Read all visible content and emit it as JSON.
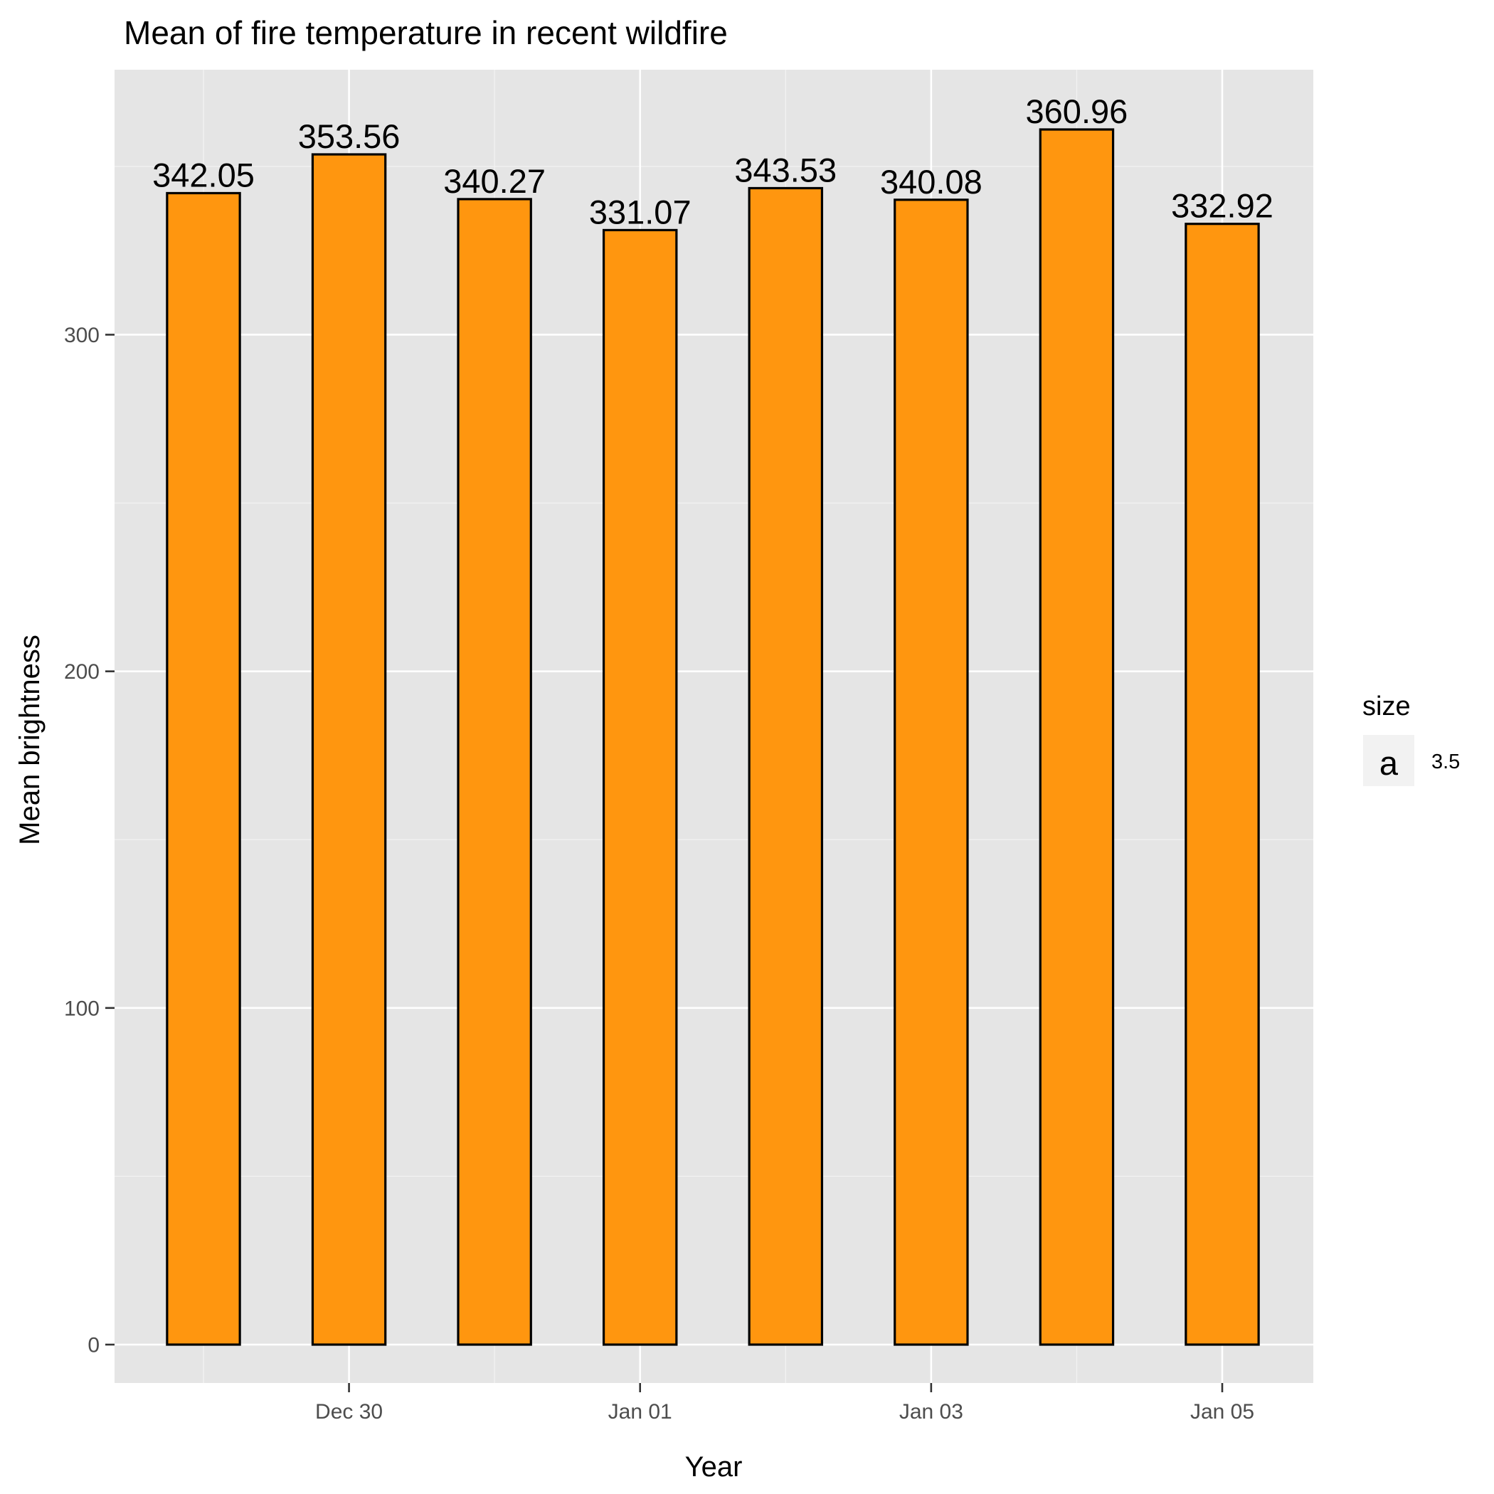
{
  "chart_data": {
    "type": "bar",
    "title": "Mean of fire temperature in recent wildfire",
    "xlabel": "Year",
    "ylabel": "Mean brightness",
    "x_axis_type": "date",
    "x_range": [
      "2022-12-28",
      "2023-01-05"
    ],
    "categories": [
      "2022-12-29",
      "2022-12-30",
      "2022-12-31",
      "2023-01-01",
      "2023-01-02",
      "2023-01-03",
      "2023-01-04",
      "2023-01-05"
    ],
    "values": [
      342.05,
      353.56,
      340.27,
      331.07,
      343.53,
      340.08,
      360.96,
      332.92
    ],
    "value_labels": [
      "342.05",
      "353.56",
      "340.27",
      "331.07",
      "343.53",
      "340.08",
      "360.96",
      "332.92"
    ],
    "ylim": [
      0,
      360.96
    ],
    "yticks": [
      0,
      100,
      200,
      300
    ],
    "ytick_labels": [
      "0",
      "100",
      "200",
      "300"
    ],
    "xticks": [
      "2022-12-30",
      "2023-01-01",
      "2023-01-03",
      "2023-01-05"
    ],
    "xtick_labels": [
      "Dec 30",
      "Jan 01",
      "Jan 03",
      "Jan 05"
    ],
    "grid": true,
    "bar_fill": "#FF960F",
    "bar_outline": "#000000",
    "panel_background": "#E5E5E5",
    "legend": {
      "position": "right",
      "title": "size",
      "key_glyph": "a",
      "entries": [
        "3.5"
      ]
    }
  }
}
